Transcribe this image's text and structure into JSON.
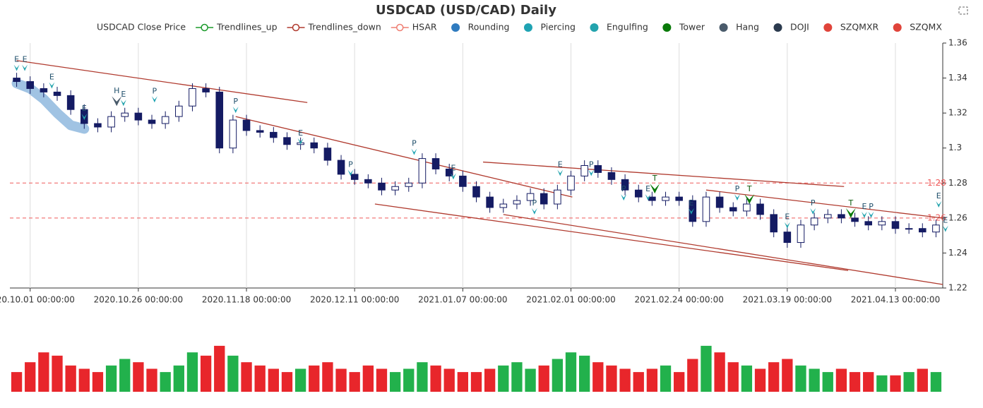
{
  "chart_data": {
    "type": "candlestick",
    "title": "USDCAD (USD/CAD) Daily",
    "legend": [
      {
        "name": "USDCAD Close Price",
        "color": null,
        "icon": null
      },
      {
        "name": "Trendlines_up",
        "color": "#1a9a2a",
        "icon": "ring"
      },
      {
        "name": "Trendlines_down",
        "color": "#b03a2e",
        "icon": "ring"
      },
      {
        "name": "HSAR",
        "color": "#ef7e72",
        "icon": "ring"
      },
      {
        "name": "Rounding",
        "color": "#2f7bbf",
        "icon": "dot"
      },
      {
        "name": "Piercing",
        "color": "#1fa3b3",
        "icon": "dot"
      },
      {
        "name": "Engulfing",
        "color": "#23a3ad",
        "icon": "dot"
      },
      {
        "name": "Tower",
        "color": "#0a7a0a",
        "icon": "dot"
      },
      {
        "name": "Hang",
        "color": "#4a5b6b",
        "icon": "dot"
      },
      {
        "name": "DOJI",
        "color": "#2b3a4e",
        "icon": "dot"
      },
      {
        "name": "SZQMXR",
        "color": "#e0443a",
        "icon": "dot"
      },
      {
        "name": "SZQMX",
        "color": "#e0443a",
        "icon": "dot"
      }
    ],
    "categories": [
      null,
      "2020.10.01 00:00:00",
      null,
      null,
      null,
      null,
      null,
      null,
      null,
      "2020.10.26 00:00:00",
      null,
      null,
      null,
      null,
      null,
      null,
      null,
      "2020.11.18 00:00:00",
      null,
      null,
      null,
      null,
      null,
      null,
      null,
      "2020.12.11 00:00:00",
      null,
      null,
      null,
      null,
      null,
      null,
      null,
      "2021.01.07 00:00:00",
      null,
      null,
      null,
      null,
      null,
      null,
      null,
      "2021.02.01 00:00:00",
      null,
      null,
      null,
      null,
      null,
      null,
      null,
      "2021.02.24 00:00:00",
      null,
      null,
      null,
      null,
      null,
      null,
      null,
      "2021.03.19 00:00:00",
      null,
      null,
      null,
      null,
      null,
      null,
      null,
      "2021.04.13 00:00:00",
      null,
      null,
      null
    ],
    "candles": {
      "open": [
        1.34,
        1.338,
        1.334,
        1.332,
        1.33,
        1.322,
        1.314,
        1.312,
        1.318,
        1.32,
        1.316,
        1.314,
        1.318,
        1.324,
        1.334,
        1.332,
        1.3,
        1.316,
        1.31,
        1.309,
        1.306,
        1.302,
        1.303,
        1.3,
        1.293,
        1.285,
        1.282,
        1.28,
        1.276,
        1.278,
        1.28,
        1.294,
        1.288,
        1.284,
        1.278,
        1.272,
        1.266,
        1.268,
        1.27,
        1.274,
        1.268,
        1.276,
        1.284,
        1.29,
        1.286,
        1.282,
        1.276,
        1.272,
        1.27,
        1.272,
        1.27,
        1.258,
        1.272,
        1.266,
        1.264,
        1.268,
        1.262,
        1.252,
        1.246,
        1.256,
        1.26,
        1.262,
        1.26,
        1.258,
        1.256,
        1.258,
        1.254,
        1.254,
        1.252
      ],
      "close": [
        1.338,
        1.334,
        1.332,
        1.33,
        1.322,
        1.314,
        1.312,
        1.318,
        1.32,
        1.316,
        1.314,
        1.318,
        1.324,
        1.334,
        1.332,
        1.3,
        1.316,
        1.31,
        1.309,
        1.306,
        1.302,
        1.303,
        1.3,
        1.293,
        1.285,
        1.282,
        1.28,
        1.276,
        1.278,
        1.28,
        1.294,
        1.288,
        1.284,
        1.278,
        1.272,
        1.266,
        1.268,
        1.27,
        1.274,
        1.268,
        1.276,
        1.284,
        1.29,
        1.286,
        1.282,
        1.276,
        1.272,
        1.27,
        1.272,
        1.27,
        1.258,
        1.272,
        1.266,
        1.264,
        1.268,
        1.262,
        1.252,
        1.246,
        1.256,
        1.26,
        1.262,
        1.26,
        1.258,
        1.256,
        1.258,
        1.254,
        1.254,
        1.252,
        1.256
      ],
      "low": [
        1.335,
        1.331,
        1.329,
        1.327,
        1.319,
        1.311,
        1.309,
        1.309,
        1.315,
        1.313,
        1.311,
        1.311,
        1.315,
        1.321,
        1.329,
        1.297,
        1.297,
        1.307,
        1.306,
        1.303,
        1.299,
        1.299,
        1.297,
        1.29,
        1.282,
        1.279,
        1.277,
        1.273,
        1.273,
        1.275,
        1.277,
        1.285,
        1.281,
        1.275,
        1.269,
        1.263,
        1.263,
        1.265,
        1.267,
        1.265,
        1.265,
        1.273,
        1.281,
        1.283,
        1.279,
        1.273,
        1.269,
        1.267,
        1.267,
        1.267,
        1.255,
        1.255,
        1.263,
        1.261,
        1.261,
        1.259,
        1.249,
        1.243,
        1.243,
        1.253,
        1.257,
        1.257,
        1.255,
        1.253,
        1.253,
        1.251,
        1.251,
        1.249,
        1.249
      ],
      "high": [
        1.343,
        1.341,
        1.337,
        1.335,
        1.333,
        1.325,
        1.317,
        1.321,
        1.323,
        1.323,
        1.319,
        1.321,
        1.327,
        1.337,
        1.337,
        1.335,
        1.319,
        1.319,
        1.313,
        1.312,
        1.309,
        1.306,
        1.306,
        1.303,
        1.296,
        1.288,
        1.285,
        1.283,
        1.281,
        1.283,
        1.297,
        1.297,
        1.291,
        1.287,
        1.281,
        1.275,
        1.271,
        1.273,
        1.277,
        1.277,
        1.279,
        1.287,
        1.293,
        1.293,
        1.289,
        1.285,
        1.279,
        1.275,
        1.275,
        1.275,
        1.273,
        1.275,
        1.275,
        1.269,
        1.271,
        1.271,
        1.265,
        1.255,
        1.259,
        1.263,
        1.265,
        1.265,
        1.263,
        1.261,
        1.261,
        1.261,
        1.257,
        1.257,
        1.259
      ],
      "up_color": "#ffffff",
      "down_color": "#141b63",
      "stroke": "#141b63"
    },
    "ylim": [
      1.22,
      1.36
    ],
    "yticks": [
      1.22,
      1.24,
      1.26,
      1.28,
      1.3,
      1.32,
      1.34,
      1.36
    ],
    "grid": true,
    "hsar": {
      "values": [
        1.28,
        1.26
      ],
      "color": "#ef5a5a"
    },
    "rounding": {
      "x": [
        0,
        1,
        2,
        3,
        4,
        5
      ],
      "values": [
        1.337,
        1.334,
        1.328,
        1.32,
        1.313,
        1.311
      ],
      "color": "#8fb8de"
    },
    "trendlines_down": [
      {
        "x": [
          0,
          21.5
        ],
        "values": [
          1.35,
          1.326
        ]
      },
      {
        "x": [
          16.2,
          41.1
        ],
        "values": [
          1.318,
          1.272
        ]
      },
      {
        "x": [
          34.5,
          61.2
        ],
        "values": [
          1.292,
          1.278
        ]
      },
      {
        "x": [
          51,
          68.5
        ],
        "values": [
          1.276,
          1.26
        ]
      },
      {
        "x": [
          26.5,
          61.5
        ],
        "values": [
          1.268,
          1.23
        ]
      },
      {
        "x": [
          36,
          68.5
        ],
        "values": [
          1.262,
          1.222
        ]
      }
    ],
    "trendline_color": "#b03a2e",
    "signals": [
      {
        "label": "E",
        "x": 0,
        "values": 1.344,
        "color": "#23a3ad"
      },
      {
        "label": "E",
        "x": 0.6,
        "values": 1.344,
        "color": "#23a3ad"
      },
      {
        "label": "E",
        "x": 2.6,
        "values": 1.334,
        "color": "#23a3ad"
      },
      {
        "label": "E",
        "x": 5,
        "values": 1.316,
        "color": "#23a3ad"
      },
      {
        "label": "H",
        "x": 7.4,
        "values": 1.324,
        "color": "#4a5b6b"
      },
      {
        "label": "E",
        "x": 7.9,
        "values": 1.324,
        "color": "#23a3ad"
      },
      {
        "label": "P",
        "x": 10.2,
        "values": 1.326,
        "color": "#1fa3b3"
      },
      {
        "label": "P",
        "x": 16.2,
        "values": 1.32,
        "color": "#1fa3b3"
      },
      {
        "label": "E",
        "x": 21,
        "values": 1.302,
        "color": "#23a3ad"
      },
      {
        "label": "P",
        "x": 24.7,
        "values": 1.284,
        "color": "#1fa3b3"
      },
      {
        "label": "P",
        "x": 29.4,
        "values": 1.296,
        "color": "#1fa3b3"
      },
      {
        "label": "E",
        "x": 32.3,
        "values": 1.282,
        "color": "#23a3ad"
      },
      {
        "label": "P",
        "x": 38.3,
        "values": 1.262,
        "color": "#1fa3b3"
      },
      {
        "label": "E",
        "x": 40.2,
        "values": 1.284,
        "color": "#23a3ad"
      },
      {
        "label": "P",
        "x": 42.5,
        "values": 1.284,
        "color": "#1fa3b3"
      },
      {
        "label": "P",
        "x": 44.9,
        "values": 1.27,
        "color": "#1fa3b3"
      },
      {
        "label": "E",
        "x": 46.7,
        "values": 1.27,
        "color": "#23a3ad"
      },
      {
        "label": "T",
        "x": 47.2,
        "values": 1.274,
        "color": "#0a7a0a"
      },
      {
        "label": "E",
        "x": 49.9,
        "values": 1.262,
        "color": "#23a3ad"
      },
      {
        "label": "P",
        "x": 53.3,
        "values": 1.27,
        "color": "#1fa3b3"
      },
      {
        "label": "T",
        "x": 54.2,
        "values": 1.268,
        "color": "#0a7a0a"
      },
      {
        "label": "E",
        "x": 57.0,
        "values": 1.254,
        "color": "#23a3ad"
      },
      {
        "label": "P",
        "x": 58.9,
        "values": 1.262,
        "color": "#1fa3b3"
      },
      {
        "label": "T",
        "x": 61.7,
        "values": 1.26,
        "color": "#0a7a0a"
      },
      {
        "label": "E",
        "x": 62.7,
        "values": 1.26,
        "color": "#23a3ad"
      },
      {
        "label": "P",
        "x": 63.2,
        "values": 1.26,
        "color": "#1fa3b3"
      },
      {
        "label": "E",
        "x": 68.2,
        "values": 1.266,
        "color": "#23a3ad"
      },
      {
        "label": "E",
        "x": 68.7,
        "values": 1.252,
        "color": "#23a3ad"
      }
    ],
    "volume": {
      "values": [
        30,
        45,
        60,
        55,
        40,
        35,
        30,
        40,
        50,
        45,
        35,
        30,
        40,
        60,
        55,
        70,
        55,
        45,
        40,
        35,
        30,
        35,
        40,
        45,
        35,
        30,
        40,
        35,
        30,
        35,
        45,
        40,
        35,
        30,
        30,
        35,
        40,
        45,
        35,
        40,
        50,
        60,
        55,
        45,
        40,
        35,
        30,
        35,
        40,
        30,
        50,
        70,
        60,
        45,
        40,
        35,
        45,
        50,
        40,
        35,
        30,
        35,
        30,
        30,
        25,
        25,
        30,
        35,
        30
      ],
      "ylim": [
        0,
        100
      ],
      "up_color": "#22b14c",
      "down_color": "#e8262b"
    }
  }
}
